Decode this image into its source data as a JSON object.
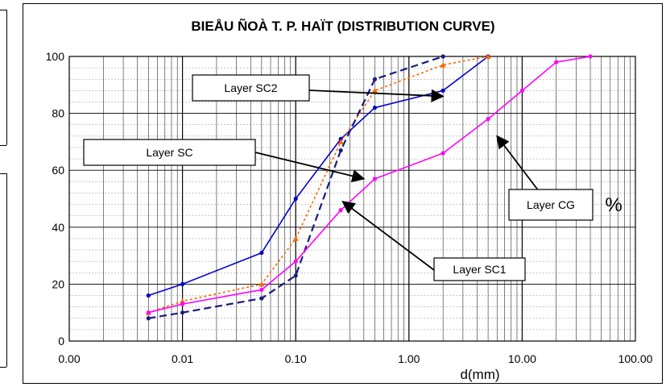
{
  "chart_data": {
    "type": "line",
    "title": "BIEÅU ÑOÀ T. P. HAÏT (DISTRIBUTION  CURVE)",
    "xlabel": "d(mm)",
    "ylabel": "%",
    "x_scale": "log",
    "xlim": [
      0.001,
      100
    ],
    "ylim": [
      0,
      100
    ],
    "x_ticks": [
      "0.00",
      "0.01",
      "0.10",
      "1.00",
      "10.00",
      "100.00"
    ],
    "y_ticks": [
      "0",
      "20",
      "40",
      "60",
      "80",
      "100"
    ],
    "grid": true,
    "series": [
      {
        "name": "Layer SC2",
        "color": "#0000cc",
        "style": "solid",
        "x": [
          0.005,
          0.01,
          0.05,
          0.1,
          0.25,
          0.5,
          2,
          5
        ],
        "y": [
          16,
          20,
          31,
          50,
          71,
          82,
          88,
          100
        ]
      },
      {
        "name": "Layer SC",
        "color": "#ff6600",
        "style": "dotted",
        "x": [
          0.005,
          0.01,
          0.05,
          0.1,
          0.25,
          0.5,
          2,
          5
        ],
        "y": [
          10,
          14,
          20,
          36,
          70,
          88,
          97,
          100
        ]
      },
      {
        "name": "Layer SC1",
        "color": "#1a1a80",
        "style": "dashed",
        "x": [
          0.005,
          0.01,
          0.05,
          0.1,
          0.25,
          0.5,
          2
        ],
        "y": [
          8,
          10,
          15,
          23,
          67,
          92,
          100
        ]
      },
      {
        "name": "Layer CG",
        "color": "#ff00ff",
        "style": "solid",
        "x": [
          0.005,
          0.01,
          0.05,
          0.1,
          0.25,
          0.5,
          2,
          5,
          10,
          20,
          40
        ],
        "y": [
          10,
          13,
          18,
          28,
          46,
          57,
          66,
          78,
          88,
          98,
          100
        ]
      }
    ],
    "annotations": [
      {
        "label": "Layer SC2",
        "points_to": "Layer SC2"
      },
      {
        "label": "Layer SC",
        "points_to": "Layer CG"
      },
      {
        "label": "Layer CG",
        "points_to": "Layer CG"
      },
      {
        "label": "Layer SC1",
        "points_to": "Layer CG"
      }
    ]
  }
}
